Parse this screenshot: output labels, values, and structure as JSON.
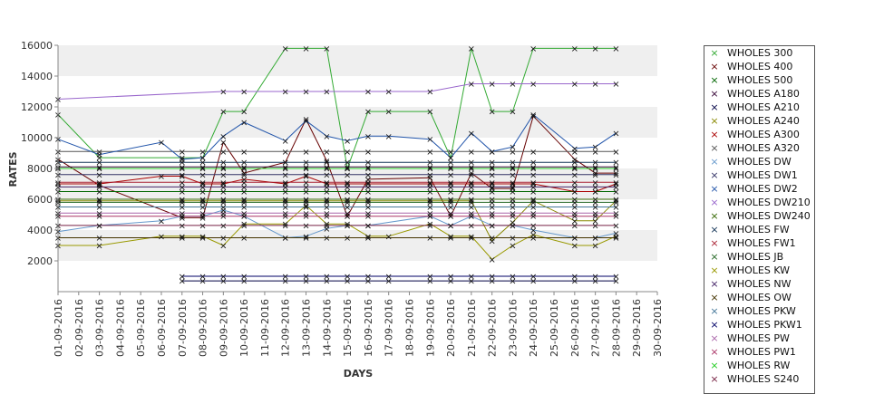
{
  "chart_data": {
    "type": "line",
    "xlabel": "DAYS",
    "ylabel": "RATES",
    "ylim": [
      0,
      16000
    ],
    "yticks": [
      2000,
      4000,
      6000,
      8000,
      10000,
      12000,
      14000,
      16000
    ],
    "grid": "horizontal bands",
    "legend": "right",
    "x": [
      "01-09-2016",
      "02-09-2016",
      "03-09-2016",
      "04-09-2016",
      "05-09-2016",
      "06-09-2016",
      "07-09-2016",
      "08-09-2016",
      "09-09-2016",
      "10-09-2016",
      "11-09-2016",
      "12-09-2016",
      "13-09-2016",
      "14-09-2016",
      "15-09-2016",
      "16-09-2016",
      "17-09-2016",
      "18-09-2016",
      "19-09-2016",
      "20-09-2016",
      "21-09-2016",
      "22-09-2016",
      "23-09-2016",
      "24-09-2016",
      "25-09-2016",
      "26-09-2016",
      "27-09-2016",
      "28-09-2016",
      "29-09-2016",
      "30-09-2016"
    ],
    "series": [
      {
        "name": "WHOLES 300",
        "color": "#33aa33",
        "values": {
          "01-09-2016": 11500,
          "03-09-2016": 8700,
          "07-09-2016": 8700,
          "08-09-2016": 8700,
          "09-09-2016": 11700,
          "10-09-2016": 11700,
          "12-09-2016": 15800,
          "13-09-2016": 15800,
          "14-09-2016": 15800,
          "15-09-2016": 8000,
          "16-09-2016": 11700,
          "17-09-2016": 11700,
          "19-09-2016": 11700,
          "20-09-2016": 8700,
          "21-09-2016": 15800,
          "22-09-2016": 11700,
          "23-09-2016": 11700,
          "24-09-2016": 15800,
          "26-09-2016": 15800,
          "27-09-2016": 15800,
          "28-09-2016": 15800
        }
      },
      {
        "name": "WHOLES 400",
        "color": "#660000",
        "values": {
          "01-09-2016": 8600,
          "03-09-2016": 6900,
          "07-09-2016": 4800,
          "08-09-2016": 4800,
          "09-09-2016": 9700,
          "10-09-2016": 7700,
          "12-09-2016": 8400,
          "13-09-2016": 11200,
          "14-09-2016": 8500,
          "15-09-2016": 4900,
          "16-09-2016": 7300,
          "19-09-2016": 7400,
          "20-09-2016": 4900,
          "21-09-2016": 7700,
          "22-09-2016": 6700,
          "23-09-2016": 6700,
          "24-09-2016": 11400,
          "26-09-2016": 8600,
          "27-09-2016": 7700,
          "28-09-2016": 7700
        }
      },
      {
        "name": "WHOLES 500",
        "color": "#006600",
        "values": {
          "01-09-2016": 6500,
          "03-09-2016": 6500,
          "07-09-2016": 6500,
          "08-09-2016": 6500,
          "09-09-2016": 6500,
          "10-09-2016": 6500,
          "12-09-2016": 6500,
          "13-09-2016": 6500,
          "14-09-2016": 6500,
          "15-09-2016": 6500,
          "16-09-2016": 6500,
          "19-09-2016": 6500,
          "20-09-2016": 6500,
          "21-09-2016": 6500,
          "22-09-2016": 6500,
          "23-09-2016": 6500,
          "24-09-2016": 6500,
          "26-09-2016": 6500,
          "27-09-2016": 6500,
          "28-09-2016": 6500
        }
      },
      {
        "name": "WHOLES A180",
        "color": "#330033",
        "values": {
          "01-09-2016": 8100,
          "03-09-2016": 8100,
          "07-09-2016": 8100,
          "08-09-2016": 8100,
          "09-09-2016": 8100,
          "10-09-2016": 8100,
          "12-09-2016": 8100,
          "13-09-2016": 8100,
          "14-09-2016": 8100,
          "15-09-2016": 8100,
          "16-09-2016": 8100,
          "19-09-2016": 8100,
          "20-09-2016": 8100,
          "21-09-2016": 8100,
          "22-09-2016": 8100,
          "23-09-2016": 8100,
          "24-09-2016": 8100,
          "26-09-2016": 8100,
          "27-09-2016": 8100,
          "28-09-2016": 8100
        }
      },
      {
        "name": "WHOLES A210",
        "color": "#000044",
        "values": {
          "07-09-2016": 700,
          "08-09-2016": 700,
          "09-09-2016": 700,
          "10-09-2016": 700,
          "12-09-2016": 700,
          "13-09-2016": 700,
          "14-09-2016": 700,
          "15-09-2016": 700,
          "16-09-2016": 700,
          "17-09-2016": 700,
          "19-09-2016": 700,
          "20-09-2016": 700,
          "21-09-2016": 700,
          "22-09-2016": 700,
          "23-09-2016": 700,
          "24-09-2016": 700,
          "26-09-2016": 700,
          "27-09-2016": 700,
          "28-09-2016": 700
        }
      },
      {
        "name": "WHOLES A240",
        "color": "#888800",
        "values": {
          "01-09-2016": 5900,
          "03-09-2016": 5900,
          "07-09-2016": 5900,
          "08-09-2016": 5900,
          "09-09-2016": 5900,
          "10-09-2016": 5900,
          "12-09-2016": 5900,
          "13-09-2016": 5900,
          "14-09-2016": 5900,
          "15-09-2016": 5900,
          "16-09-2016": 5900,
          "19-09-2016": 5900,
          "20-09-2016": 5900,
          "21-09-2016": 5900,
          "22-09-2016": 3300,
          "23-09-2016": 4500,
          "24-09-2016": 5900,
          "26-09-2016": 4600,
          "27-09-2016": 4600,
          "28-09-2016": 5900
        }
      },
      {
        "name": "WHOLES A300",
        "color": "#aa0000",
        "values": {
          "01-09-2016": 7000,
          "03-09-2016": 7000,
          "06-09-2016": 7500,
          "07-09-2016": 7500,
          "08-09-2016": 7000,
          "09-09-2016": 7000,
          "10-09-2016": 7300,
          "12-09-2016": 7000,
          "13-09-2016": 7500,
          "14-09-2016": 7000,
          "15-09-2016": 7000,
          "16-09-2016": 7000,
          "19-09-2016": 7000,
          "20-09-2016": 7000,
          "21-09-2016": 7000,
          "22-09-2016": 7000,
          "23-09-2016": 7000,
          "24-09-2016": 7000,
          "26-09-2016": 6500,
          "27-09-2016": 6500,
          "28-09-2016": 7000
        }
      },
      {
        "name": "WHOLES A320",
        "color": "#555555",
        "values": {
          "01-09-2016": 9100,
          "03-09-2016": 9100,
          "07-09-2016": 9100,
          "08-09-2016": 9100,
          "09-09-2016": 9100,
          "10-09-2016": 9100,
          "12-09-2016": 9100,
          "13-09-2016": 9100,
          "14-09-2016": 9100,
          "15-09-2016": 9100,
          "16-09-2016": 9100,
          "19-09-2016": 9100,
          "20-09-2016": 9100,
          "21-09-2016": 9100,
          "22-09-2016": 9100,
          "23-09-2016": 9100,
          "24-09-2016": 9100,
          "26-09-2016": 9100,
          "27-09-2016": 9100,
          "28-09-2016": 9100
        }
      },
      {
        "name": "WHOLES DW",
        "color": "#6699cc",
        "values": {
          "01-09-2016": 3900,
          "03-09-2016": 4300,
          "06-09-2016": 4600,
          "07-09-2016": 4900,
          "08-09-2016": 4900,
          "09-09-2016": 5300,
          "10-09-2016": 4900,
          "12-09-2016": 3500,
          "13-09-2016": 3600,
          "14-09-2016": 4100,
          "15-09-2016": 4300,
          "16-09-2016": 4300,
          "19-09-2016": 4900,
          "20-09-2016": 4300,
          "21-09-2016": 4900,
          "22-09-2016": 4300,
          "23-09-2016": 4300,
          "24-09-2016": 4000,
          "26-09-2016": 3500,
          "27-09-2016": 3500,
          "28-09-2016": 3800
        }
      },
      {
        "name": "WHOLES DW1",
        "color": "#333366",
        "values": {
          "01-09-2016": 7600,
          "03-09-2016": 7600,
          "07-09-2016": 7600,
          "08-09-2016": 7600,
          "09-09-2016": 7600,
          "10-09-2016": 7600,
          "12-09-2016": 7600,
          "13-09-2016": 7600,
          "14-09-2016": 7600,
          "15-09-2016": 7600,
          "16-09-2016": 7600,
          "19-09-2016": 7600,
          "20-09-2016": 7600,
          "21-09-2016": 7600,
          "22-09-2016": 7600,
          "23-09-2016": 7600,
          "24-09-2016": 7600,
          "26-09-2016": 7600,
          "27-09-2016": 7600,
          "28-09-2016": 7600
        }
      },
      {
        "name": "WHOLES DW2",
        "color": "#2255aa",
        "values": {
          "01-09-2016": 9900,
          "03-09-2016": 8900,
          "06-09-2016": 9700,
          "07-09-2016": 8600,
          "08-09-2016": 8700,
          "09-09-2016": 10100,
          "10-09-2016": 11000,
          "12-09-2016": 9800,
          "13-09-2016": 11100,
          "14-09-2016": 10100,
          "15-09-2016": 9800,
          "16-09-2016": 10100,
          "17-09-2016": 10100,
          "19-09-2016": 9900,
          "20-09-2016": 8700,
          "21-09-2016": 10300,
          "22-09-2016": 9100,
          "23-09-2016": 9400,
          "24-09-2016": 11500,
          "26-09-2016": 9300,
          "27-09-2016": 9400,
          "28-09-2016": 10300
        }
      },
      {
        "name": "WHOLES DW210",
        "color": "#9966cc",
        "values": {
          "01-09-2016": 12500,
          "09-09-2016": 13000,
          "10-09-2016": 13000,
          "12-09-2016": 13000,
          "13-09-2016": 13000,
          "14-09-2016": 13000,
          "16-09-2016": 13000,
          "17-09-2016": 13000,
          "19-09-2016": 13000,
          "21-09-2016": 13500,
          "22-09-2016": 13500,
          "23-09-2016": 13500,
          "24-09-2016": 13500,
          "26-09-2016": 13500,
          "27-09-2016": 13500,
          "28-09-2016": 13500
        }
      },
      {
        "name": "WHOLES DW240",
        "color": "#336600",
        "values": {
          "01-09-2016": 6000,
          "03-09-2016": 6000,
          "07-09-2016": 6000,
          "08-09-2016": 6000,
          "09-09-2016": 6000,
          "10-09-2016": 6000,
          "12-09-2016": 6000,
          "13-09-2016": 6000,
          "14-09-2016": 6000,
          "15-09-2016": 6000,
          "16-09-2016": 6000,
          "19-09-2016": 6000,
          "20-09-2016": 6000,
          "21-09-2016": 6000,
          "22-09-2016": 6000,
          "23-09-2016": 6000,
          "24-09-2016": 6000,
          "26-09-2016": 6000,
          "27-09-2016": 6000,
          "28-09-2016": 6000
        }
      },
      {
        "name": "WHOLES FW",
        "color": "#113355",
        "values": {
          "01-09-2016": 8400,
          "03-09-2016": 8400,
          "07-09-2016": 8400,
          "08-09-2016": 8400,
          "09-09-2016": 8400,
          "10-09-2016": 8400,
          "12-09-2016": 8400,
          "13-09-2016": 8400,
          "14-09-2016": 8400,
          "15-09-2016": 8400,
          "16-09-2016": 8400,
          "19-09-2016": 8400,
          "20-09-2016": 8400,
          "21-09-2016": 8400,
          "22-09-2016": 8400,
          "23-09-2016": 8400,
          "24-09-2016": 8400,
          "26-09-2016": 8400,
          "27-09-2016": 8400,
          "28-09-2016": 8400
        }
      },
      {
        "name": "WHOLES FW1",
        "color": "#aa2233",
        "values": {
          "01-09-2016": 7100,
          "03-09-2016": 7100,
          "07-09-2016": 7100,
          "08-09-2016": 7100,
          "09-09-2016": 7100,
          "10-09-2016": 7100,
          "12-09-2016": 7100,
          "13-09-2016": 7100,
          "14-09-2016": 7100,
          "15-09-2016": 7100,
          "16-09-2016": 7100,
          "19-09-2016": 7100,
          "20-09-2016": 7100,
          "21-09-2016": 7100,
          "22-09-2016": 7100,
          "23-09-2016": 7100,
          "24-09-2016": 7100,
          "26-09-2016": 7100,
          "27-09-2016": 7100,
          "28-09-2016": 7100
        }
      },
      {
        "name": "WHOLES JB",
        "color": "#226622",
        "values": {
          "01-09-2016": 5800,
          "03-09-2016": 5800,
          "07-09-2016": 5800,
          "08-09-2016": 5800,
          "09-09-2016": 5800,
          "10-09-2016": 5800,
          "12-09-2016": 5800,
          "13-09-2016": 5800,
          "14-09-2016": 5800,
          "15-09-2016": 5800,
          "16-09-2016": 5800,
          "19-09-2016": 5800,
          "20-09-2016": 5800,
          "21-09-2016": 5800,
          "22-09-2016": 5800,
          "23-09-2016": 5800,
          "24-09-2016": 5800,
          "26-09-2016": 5800,
          "27-09-2016": 5800,
          "28-09-2016": 5800
        }
      },
      {
        "name": "WHOLES KW",
        "color": "#999900",
        "values": {
          "01-09-2016": 3000,
          "03-09-2016": 3000,
          "06-09-2016": 3600,
          "07-09-2016": 3600,
          "08-09-2016": 3600,
          "09-09-2016": 3000,
          "10-09-2016": 4400,
          "12-09-2016": 4400,
          "13-09-2016": 5600,
          "14-09-2016": 4400,
          "15-09-2016": 4400,
          "16-09-2016": 3600,
          "17-09-2016": 3600,
          "19-09-2016": 4400,
          "20-09-2016": 3600,
          "21-09-2016": 3600,
          "22-09-2016": 2100,
          "23-09-2016": 3000,
          "24-09-2016": 3700,
          "26-09-2016": 3000,
          "27-09-2016": 3000,
          "28-09-2016": 3600
        }
      },
      {
        "name": "WHOLES NW",
        "color": "#442266",
        "values": {
          "01-09-2016": 6800,
          "03-09-2016": 6800,
          "07-09-2016": 6800,
          "08-09-2016": 6800,
          "09-09-2016": 6800,
          "10-09-2016": 6800,
          "12-09-2016": 6800,
          "13-09-2016": 6800,
          "14-09-2016": 6800,
          "15-09-2016": 6800,
          "16-09-2016": 6800,
          "19-09-2016": 6800,
          "20-09-2016": 6800,
          "21-09-2016": 6800,
          "22-09-2016": 6800,
          "23-09-2016": 6800,
          "24-09-2016": 6800,
          "26-09-2016": 6800,
          "27-09-2016": 6800,
          "28-09-2016": 6800
        }
      },
      {
        "name": "WHOLES OW",
        "color": "#443300",
        "values": {
          "01-09-2016": 3500,
          "03-09-2016": 3500,
          "07-09-2016": 3500,
          "08-09-2016": 3500,
          "09-09-2016": 3500,
          "10-09-2016": 3500,
          "12-09-2016": 3500,
          "13-09-2016": 3500,
          "14-09-2016": 3500,
          "15-09-2016": 3500,
          "16-09-2016": 3500,
          "19-09-2016": 3500,
          "20-09-2016": 3500,
          "21-09-2016": 3500,
          "22-09-2016": 3500,
          "23-09-2016": 3500,
          "24-09-2016": 3500,
          "26-09-2016": 3500,
          "27-09-2016": 3500,
          "28-09-2016": 3500
        }
      },
      {
        "name": "WHOLES PKW",
        "color": "#447799",
        "values": {
          "01-09-2016": 5500,
          "03-09-2016": 5500,
          "07-09-2016": 5500,
          "08-09-2016": 5500,
          "09-09-2016": 5500,
          "10-09-2016": 5500,
          "12-09-2016": 5500,
          "13-09-2016": 5500,
          "14-09-2016": 5500,
          "15-09-2016": 5500,
          "16-09-2016": 5500,
          "19-09-2016": 5500,
          "20-09-2016": 5500,
          "21-09-2016": 5500,
          "22-09-2016": 5500,
          "23-09-2016": 5500,
          "24-09-2016": 5500,
          "26-09-2016": 5500,
          "27-09-2016": 5500,
          "28-09-2016": 5500
        }
      },
      {
        "name": "WHOLES PKW1",
        "color": "#000066",
        "values": {
          "07-09-2016": 1000,
          "08-09-2016": 1000,
          "09-09-2016": 1000,
          "10-09-2016": 1000,
          "12-09-2016": 1000,
          "13-09-2016": 1000,
          "14-09-2016": 1000,
          "15-09-2016": 1000,
          "16-09-2016": 1000,
          "17-09-2016": 1000,
          "19-09-2016": 1000,
          "20-09-2016": 1000,
          "21-09-2016": 1000,
          "22-09-2016": 1000,
          "23-09-2016": 1000,
          "24-09-2016": 1000,
          "26-09-2016": 1000,
          "27-09-2016": 1000,
          "28-09-2016": 1000
        }
      },
      {
        "name": "WHOLES PW",
        "color": "#aa66aa",
        "values": {
          "01-09-2016": 5100,
          "03-09-2016": 5100,
          "07-09-2016": 5100,
          "08-09-2016": 5100,
          "09-09-2016": 5100,
          "10-09-2016": 5100,
          "12-09-2016": 5100,
          "13-09-2016": 5100,
          "14-09-2016": 5100,
          "15-09-2016": 5100,
          "16-09-2016": 5100,
          "19-09-2016": 5100,
          "20-09-2016": 5100,
          "21-09-2016": 5100,
          "22-09-2016": 5100,
          "23-09-2016": 5100,
          "24-09-2016": 5100,
          "26-09-2016": 5100,
          "27-09-2016": 5100,
          "28-09-2016": 5100
        }
      },
      {
        "name": "WHOLES PW1",
        "color": "#aa3366",
        "values": {
          "01-09-2016": 4900,
          "03-09-2016": 4900,
          "07-09-2016": 4900,
          "08-09-2016": 4900,
          "09-09-2016": 4900,
          "10-09-2016": 4900,
          "12-09-2016": 4900,
          "13-09-2016": 4900,
          "14-09-2016": 4900,
          "15-09-2016": 4900,
          "16-09-2016": 4900,
          "19-09-2016": 4900,
          "20-09-2016": 4900,
          "21-09-2016": 4900,
          "22-09-2016": 4900,
          "23-09-2016": 4900,
          "24-09-2016": 4900,
          "26-09-2016": 4900,
          "27-09-2016": 4900,
          "28-09-2016": 4900
        }
      },
      {
        "name": "WHOLES RW",
        "color": "#22cc22",
        "values": {
          "01-09-2016": 8000,
          "03-09-2016": 8000,
          "07-09-2016": 8000,
          "08-09-2016": 8000,
          "09-09-2016": 8000,
          "10-09-2016": 8000,
          "12-09-2016": 8000,
          "13-09-2016": 8000,
          "14-09-2016": 8000,
          "15-09-2016": 8000,
          "16-09-2016": 8000,
          "19-09-2016": 8000,
          "20-09-2016": 8000,
          "21-09-2016": 8000,
          "22-09-2016": 8000,
          "23-09-2016": 8000,
          "24-09-2016": 8000,
          "26-09-2016": 8000,
          "27-09-2016": 8000,
          "28-09-2016": 8000
        }
      },
      {
        "name": "WHOLES S240",
        "color": "#772244",
        "values": {
          "01-09-2016": 4300,
          "03-09-2016": 4300,
          "07-09-2016": 4300,
          "08-09-2016": 4300,
          "09-09-2016": 4300,
          "10-09-2016": 4300,
          "12-09-2016": 4300,
          "13-09-2016": 4300,
          "14-09-2016": 4300,
          "15-09-2016": 4300,
          "16-09-2016": 4300,
          "19-09-2016": 4300,
          "20-09-2016": 4300,
          "21-09-2016": 4300,
          "22-09-2016": 4300,
          "23-09-2016": 4300,
          "24-09-2016": 4300,
          "26-09-2016": 4300,
          "27-09-2016": 4300,
          "28-09-2016": 4300
        }
      }
    ]
  }
}
